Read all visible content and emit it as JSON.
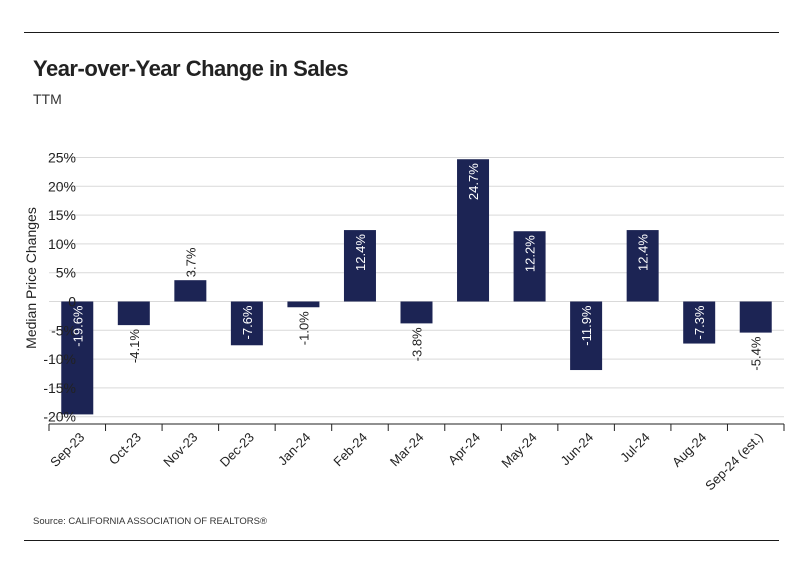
{
  "header": {
    "title": "Year-over-Year Change in Sales",
    "subtitle": "TTM"
  },
  "footer": {
    "source": "Source:  CALIFORNIA ASSOCIATION OF REALTORS®"
  },
  "colors": {
    "bar": "#1c2454",
    "grid": "#d9d9d9",
    "label_inside": "#ffffff",
    "label_outside": "#222222"
  },
  "chart_data": {
    "type": "bar",
    "title": "Year-over-Year Change in Sales",
    "subtitle": "TTM",
    "xlabel": "",
    "ylabel": "Median Price Changes",
    "categories": [
      "Sep-23",
      "Oct-23",
      "Nov-23",
      "Dec-23",
      "Jan-24",
      "Feb-24",
      "Mar-24",
      "Apr-24",
      "May-24",
      "Jun-24",
      "Jul-24",
      "Aug-24",
      "Sep-24 (est.)"
    ],
    "values": [
      -19.6,
      -4.1,
      3.7,
      -7.6,
      -1.0,
      12.4,
      -3.8,
      24.7,
      12.2,
      -11.9,
      12.4,
      -7.3,
      -5.4
    ],
    "data_labels": [
      "-19.6%",
      "-4.1%",
      "3.7%",
      "-7.6%",
      "-1.0%",
      "12.4%",
      "-3.8%",
      "24.7%",
      "12.2%",
      "-11.9%",
      "12.4%",
      "-7.3%",
      "-5.4%"
    ],
    "ylim": [
      -22,
      25
    ],
    "yticks": [
      25,
      20,
      15,
      10,
      5,
      0,
      -5,
      -10,
      -15,
      -20
    ],
    "ytick_labels": [
      "25%",
      "20%",
      "15%",
      "10%",
      "5%",
      "0",
      "-5%",
      "-10%",
      "-15%",
      "-20%"
    ],
    "grid": true,
    "legend": "none"
  }
}
